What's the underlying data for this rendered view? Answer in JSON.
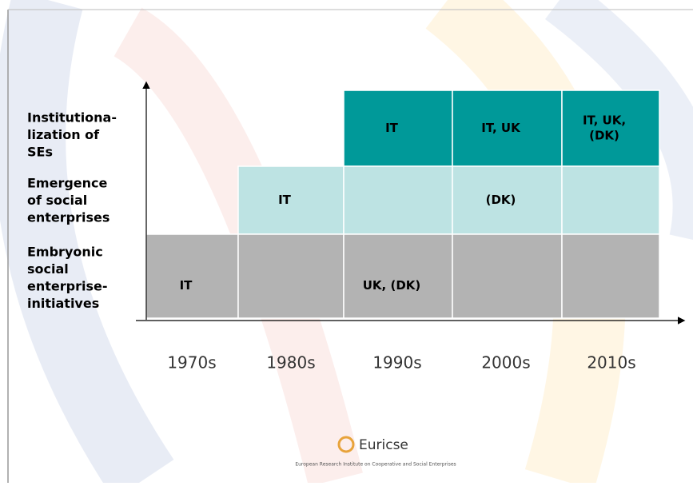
{
  "levels": [
    {
      "label": [
        "Institutiona-",
        "lization of",
        "SEs"
      ],
      "color": "#009999",
      "first_column": 2,
      "cells": [
        null,
        null,
        [
          "IT"
        ],
        [
          "IT, UK"
        ],
        [
          "IT, UK,",
          "(DK)"
        ]
      ]
    },
    {
      "label": [
        "Emergence",
        "of social",
        "enterprises"
      ],
      "color": "#bde3e3",
      "first_column": 1,
      "cells": [
        null,
        [
          "IT"
        ],
        null,
        [
          "(DK)"
        ],
        null
      ]
    },
    {
      "label": [
        "Embryonic",
        "social",
        "enterprise-",
        "initiatives"
      ],
      "color": "#b3b3b3",
      "first_column": 0,
      "cells": [
        [
          "IT"
        ],
        null,
        [
          "UK, (DK)"
        ],
        null,
        null
      ]
    }
  ],
  "columns": [
    "1970s",
    "1980s",
    "1990s",
    "2000s",
    "2010s"
  ],
  "logo": {
    "name": "Euricse",
    "subtitle": "European Research Institute on Cooperative and Social Enterprises"
  }
}
